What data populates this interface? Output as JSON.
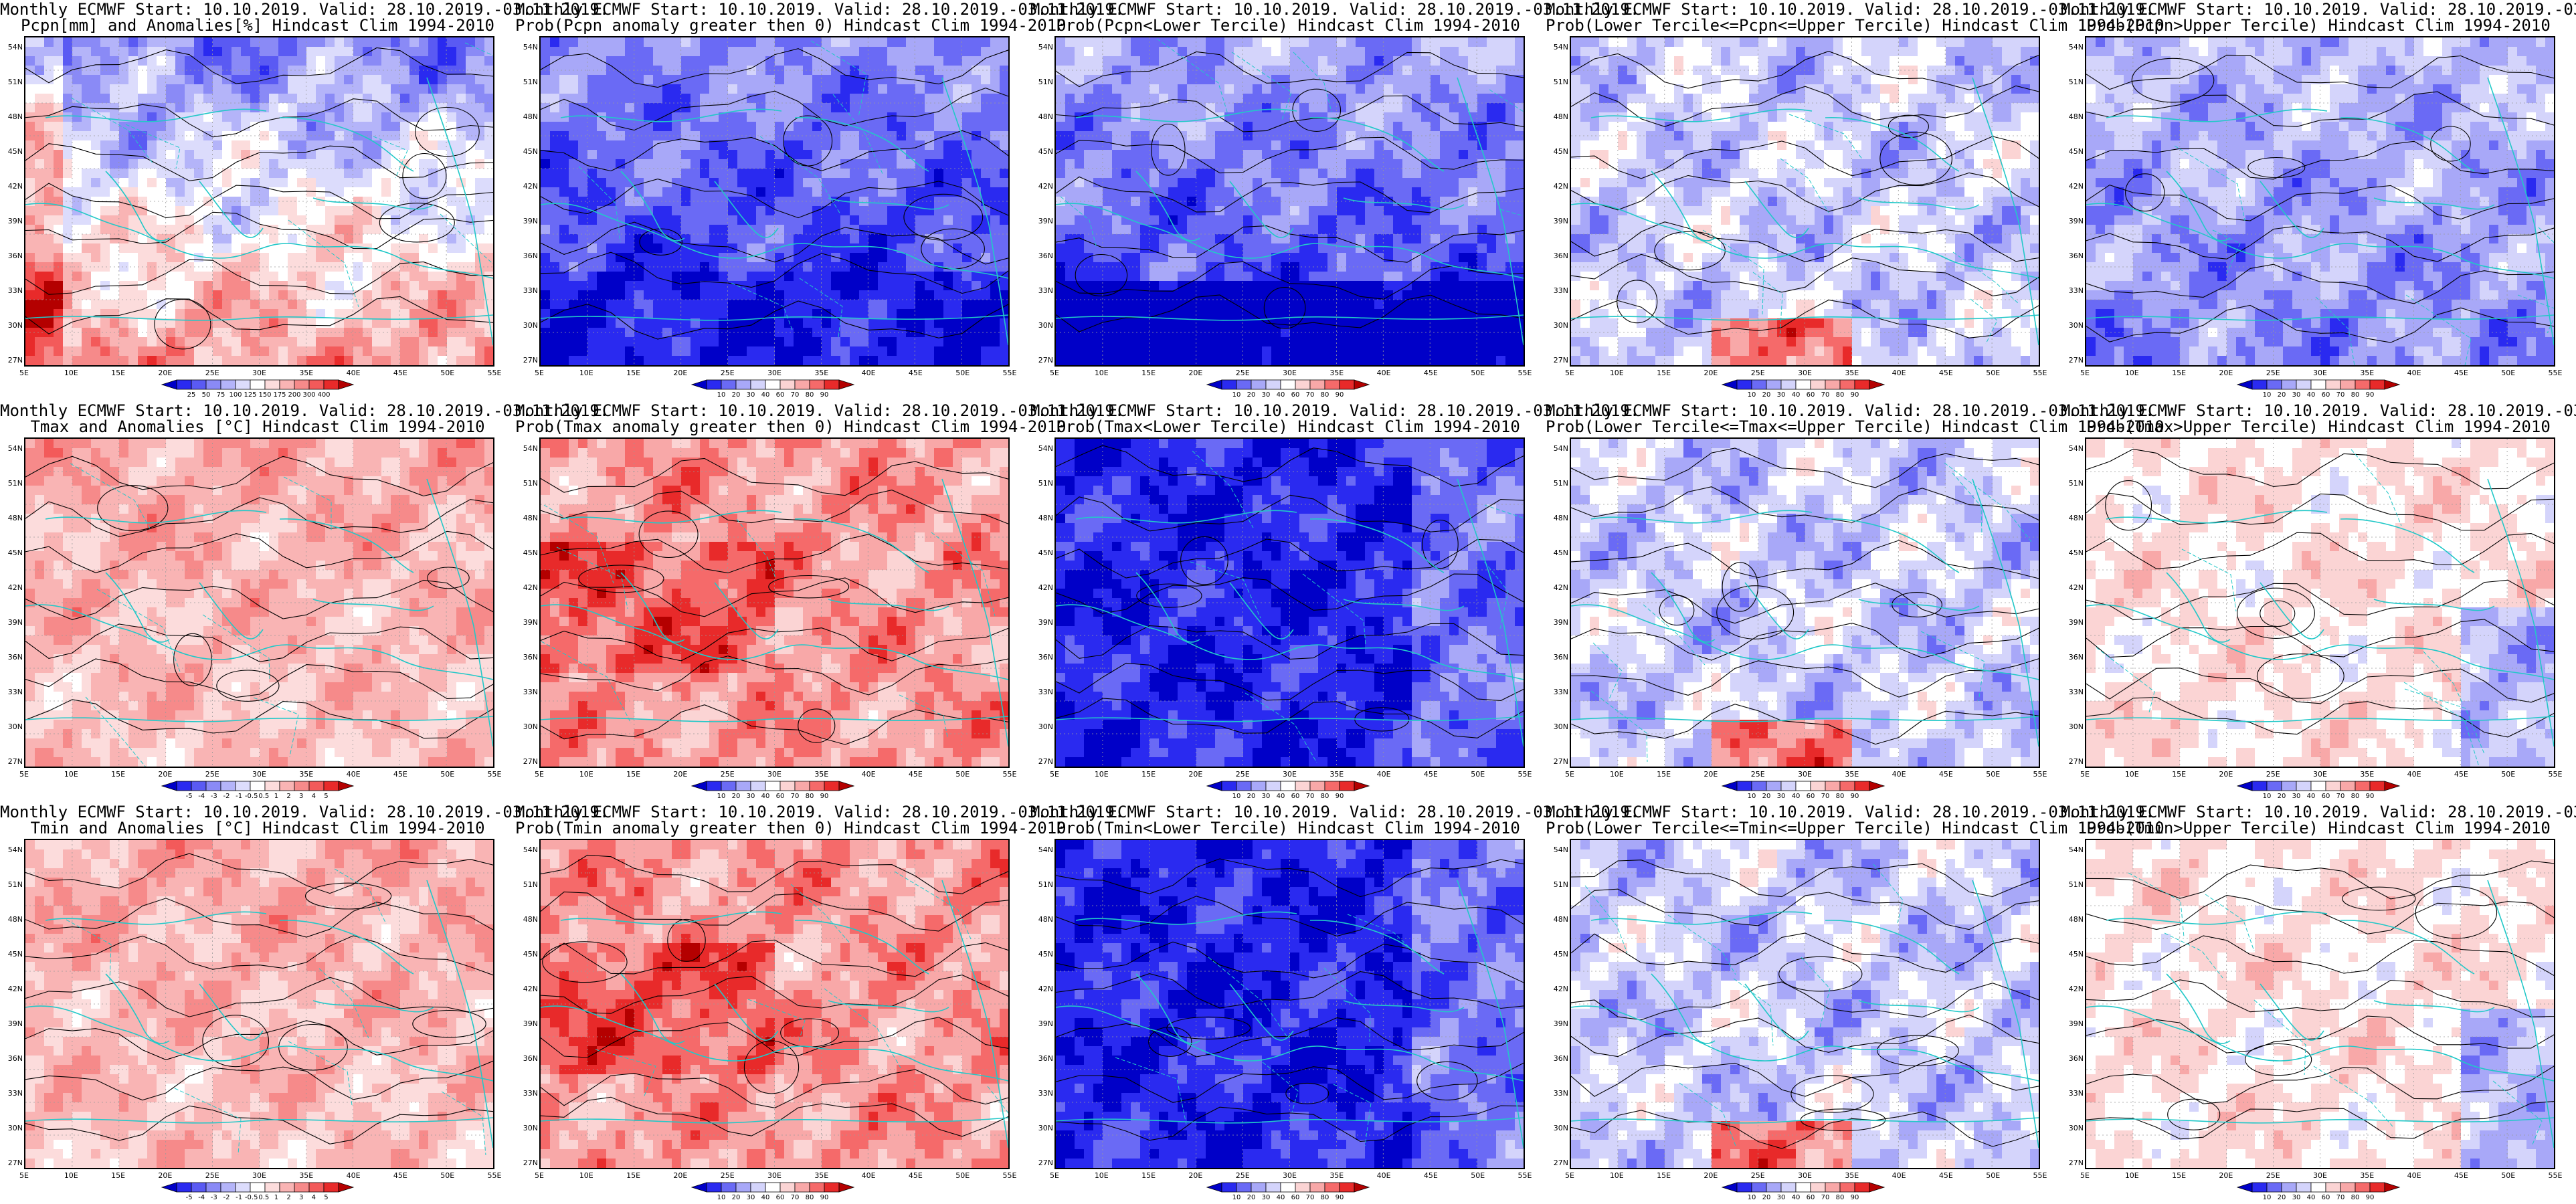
{
  "title_line1": "Monthly ECMWF Start: 10.10.2019. Valid: 28.10.2019.-03.11.2019.",
  "lat_ticks": [
    "54N",
    "51N",
    "48N",
    "45N",
    "42N",
    "39N",
    "36N",
    "33N",
    "30N",
    "27N"
  ],
  "lon_ticks": [
    "5E",
    "10E",
    "15E",
    "20E",
    "25E",
    "30E",
    "35E",
    "40E",
    "45E",
    "50E",
    "55E"
  ],
  "palettes": {
    "prob_colors": [
      "#0000c8",
      "#2a2af0",
      "#6a6af5",
      "#a8a8f8",
      "#d4d4fb",
      "#ffffff",
      "#fbd4d4",
      "#f8a8a8",
      "#f56a6a",
      "#e82a2a",
      "#b40000"
    ],
    "diverging_colors": [
      "#0000c8",
      "#2a2af0",
      "#5a5af3",
      "#8a8af6",
      "#b4b4f9",
      "#dcdcfc",
      "#ffffff",
      "#fcdcdc",
      "#f9b4b4",
      "#f68a8a",
      "#f35a5a",
      "#e82a2a",
      "#b40000"
    ],
    "contour_color": "#000000",
    "coast_color": "#22c8c8"
  },
  "colorbar_labels": {
    "pcpn_anom": [
      "25",
      "50",
      "75",
      "100",
      "125",
      "150",
      "175",
      "200",
      "300",
      "400"
    ],
    "prob": [
      "10",
      "20",
      "30",
      "40",
      "60",
      "70",
      "80",
      "90"
    ],
    "temp_anom": [
      "-5",
      "-4",
      "-3",
      "-2",
      "-1",
      "-0.5",
      "0.5",
      "1",
      "2",
      "3",
      "4",
      "5"
    ]
  },
  "panels": [
    {
      "title2": "Pcpn[mm] and Anomalies[%] Hindcast Clim 1994-2010",
      "cbar": "pcpn_anom",
      "field": "pcpn_anom"
    },
    {
      "title2": "Prob(Pcpn anomaly greater then 0) Hindcast Clim 1994-2010",
      "cbar": "prob",
      "field": "pcpn_blue"
    },
    {
      "title2": "Prob(Pcpn<Lower Tercile) Hindcast Clim 1994-2010",
      "cbar": "prob",
      "field": "pcpn_blue_deep"
    },
    {
      "title2": "Prob(Lower Tercile<=Pcpn<=Upper Tercile) Hindcast Clim 1994-2010",
      "cbar": "prob",
      "field": "mixed_mid"
    },
    {
      "title2": "Prob(Pcpn>Upper Tercile) Hindcast Clim 1994-2010",
      "cbar": "prob",
      "field": "pcpn_upper"
    },
    {
      "title2": "Tmax and Anomalies [°C] Hindcast Clim 1994-2010",
      "cbar": "temp_anom",
      "field": "warm_light"
    },
    {
      "title2": "Prob(Tmax anomaly greater then 0) Hindcast Clim 1994-2010",
      "cbar": "prob",
      "field": "warm_strong"
    },
    {
      "title2": "Prob(Tmax<Lower Tercile) Hindcast Clim 1994-2010",
      "cbar": "prob",
      "field": "cold_deep"
    },
    {
      "title2": "Prob(Lower Tercile<=Tmax<=Upper Tercile) Hindcast Clim 1994-2010",
      "cbar": "prob",
      "field": "mixed_mid"
    },
    {
      "title2": "Prob(Tmax>Upper Tercile) Hindcast Clim 1994-2010",
      "cbar": "prob",
      "field": "warm_patchy"
    },
    {
      "title2": "Tmin and Anomalies [°C] Hindcast Clim 1994-2010",
      "cbar": "temp_anom",
      "field": "warm_light"
    },
    {
      "title2": "Prob(Tmin anomaly greater then 0) Hindcast Clim 1994-2010",
      "cbar": "prob",
      "field": "warm_strong"
    },
    {
      "title2": "Prob(Tmin<Lower Tercile) Hindcast Clim 1994-2010",
      "cbar": "prob",
      "field": "cold_deep"
    },
    {
      "title2": "Prob(Lower Tercile<=Tmin<=Upper Tercile) Hindcast Clim 1994-2010",
      "cbar": "prob",
      "field": "mixed_mid"
    },
    {
      "title2": "Prob(Tmin>Upper Tercile) Hindcast Clim 1994-2010",
      "cbar": "prob",
      "field": "warm_patchy"
    }
  ]
}
